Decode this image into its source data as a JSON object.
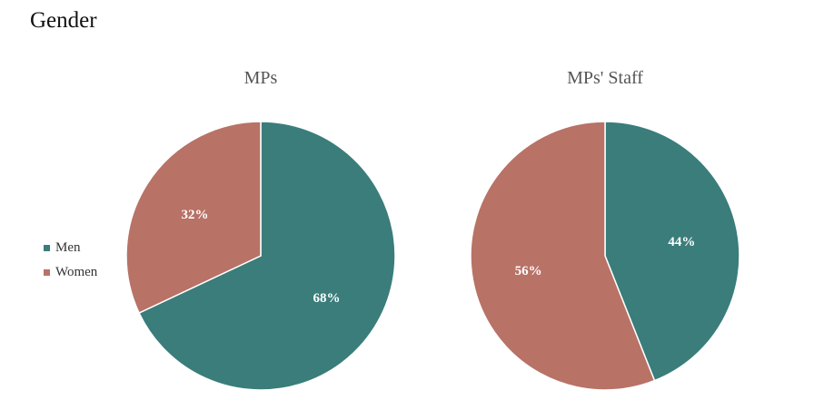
{
  "page": {
    "title": "Gender"
  },
  "legend": {
    "items": [
      {
        "label": "Men",
        "color": "#3a7d7b"
      },
      {
        "label": "Women",
        "color": "#b87266"
      }
    ]
  },
  "chart_data": [
    {
      "type": "pie",
      "title": "MPs",
      "slices": [
        {
          "label": "Men",
          "value": 68,
          "display": "68%",
          "color": "#3a7d7b"
        },
        {
          "label": "Women",
          "value": 32,
          "display": "32%",
          "color": "#b87266"
        }
      ]
    },
    {
      "type": "pie",
      "title": "MPs' Staff",
      "slices": [
        {
          "label": "Men",
          "value": 44,
          "display": "44%",
          "color": "#3a7d7b"
        },
        {
          "label": "Women",
          "value": 56,
          "display": "56%",
          "color": "#b87266"
        }
      ]
    }
  ]
}
